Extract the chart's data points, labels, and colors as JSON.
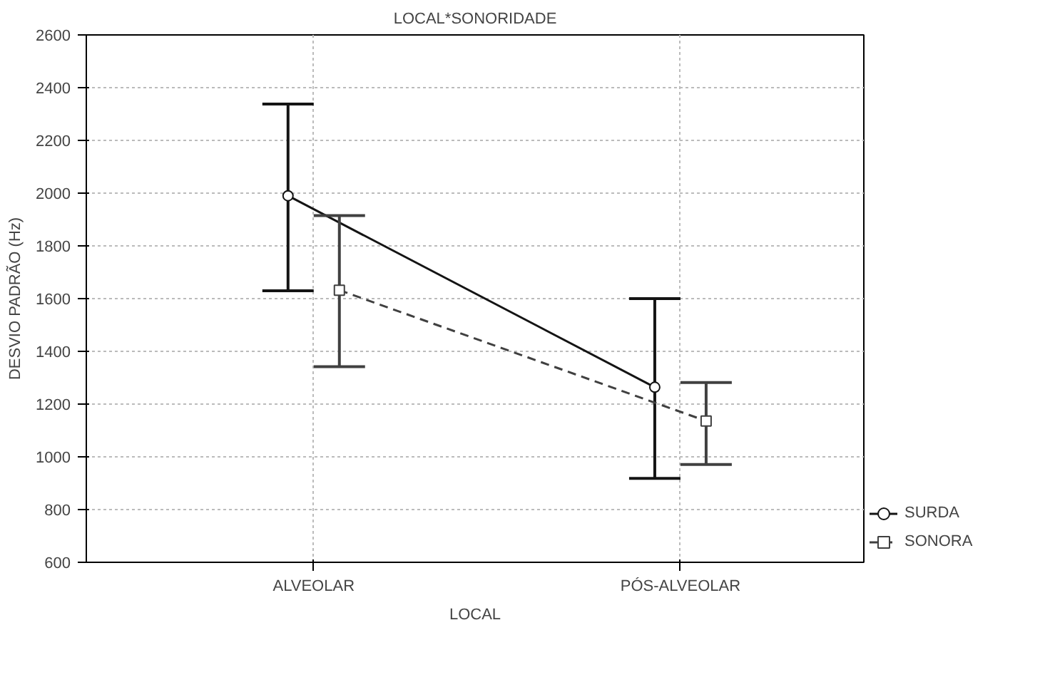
{
  "chart_data": {
    "type": "line",
    "title": "LOCAL*SONORIDADE",
    "xlabel": "LOCAL",
    "ylabel": "DESVIO PADRÃO (Hz)",
    "categories": [
      "ALVEOLAR",
      "PÓS-ALVEOLAR"
    ],
    "ylim": [
      600,
      2600
    ],
    "yticks": [
      600,
      800,
      1000,
      1200,
      1400,
      1600,
      1800,
      2000,
      2200,
      2400,
      2600
    ],
    "grid": true,
    "legend": "bottom right",
    "series": [
      {
        "name": "SURDA",
        "color": "#141414",
        "marker": "circle",
        "line_style": "solid",
        "values": [
          1990,
          1264
        ],
        "errors": [
          [
            1630,
            2338
          ],
          [
            918,
            1600
          ]
        ]
      },
      {
        "name": "SONORA",
        "color": "#404040",
        "marker": "square",
        "line_style": "dashed",
        "values": [
          1632,
          1136
        ],
        "errors": [
          [
            1342,
            1915
          ],
          [
            971,
            1282
          ]
        ]
      }
    ]
  }
}
